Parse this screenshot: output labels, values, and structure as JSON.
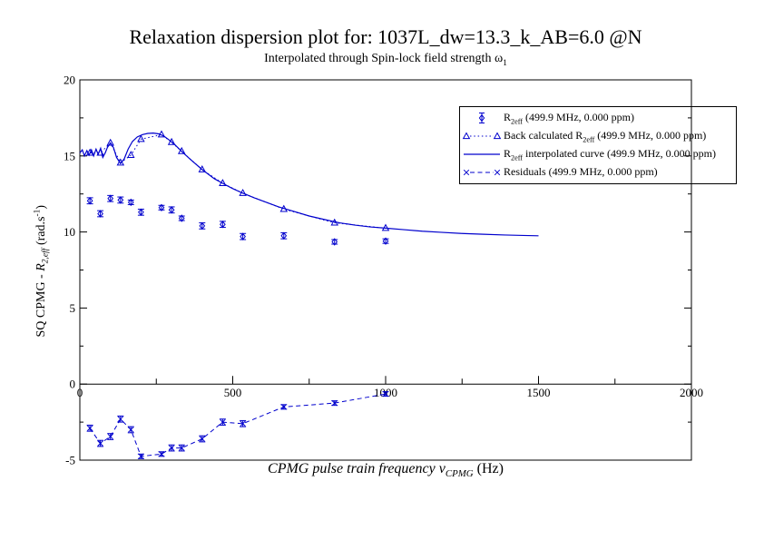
{
  "page": {
    "title": "Relaxation dispersion plot for: 1037L_dw=13.3_k_AB=6.0 @N",
    "subtitle": {
      "pre": "Interpolated through Spin-lock field strength ",
      "symbol": "ω",
      "sub": "1"
    }
  },
  "axes": {
    "x": {
      "label": {
        "p1": "CPMG pulse train frequency ",
        "nu": "ν",
        "sub": "CPMG",
        "p2": " (Hz)"
      },
      "major_ticks": [
        0,
        500,
        1000,
        1500,
        2000
      ],
      "minor_ticks": [
        250,
        750,
        1250,
        1750
      ]
    },
    "y": {
      "label": {
        "p1": "SQ CPMG - ",
        "r": "R",
        "sub": "2,eff",
        "p2": " (rad.s",
        "sup": "-1",
        "p3": ")"
      },
      "major_ticks": [
        20,
        15,
        10,
        5,
        0,
        -5
      ],
      "minor_ticks": [
        17.5,
        12.5,
        7.5,
        2.5,
        -2.5
      ]
    }
  },
  "legend": {
    "entries": [
      {
        "pre": "R",
        "sub": "2eff",
        "post": " (499.9 MHz, 0.000 ppm)"
      },
      {
        "pre": "Back calculated R",
        "sub": "2eff",
        "post": " (499.9 MHz, 0.000 ppm)"
      },
      {
        "pre": "R",
        "sub": "2eff",
        "post": " interpolated curve (499.9 MHz, 0.000 ppm)"
      },
      {
        "pre": "Residuals (499.9 MHz, 0.000 ppm)",
        "sub": "",
        "post": ""
      }
    ]
  },
  "colors": {
    "series": "#0000cd",
    "axis": "#000000"
  },
  "chart_data": {
    "type": "line",
    "title": "Relaxation dispersion plot for: 1037L_dw=13.3_k_AB=6.0 @N",
    "subtitle": "Interpolated through Spin-lock field strength ω_1",
    "xlabel": "CPMG pulse train frequency ν_CPMG (Hz)",
    "ylabel": "SQ CPMG - R_2,eff (rad.s^-1)",
    "xlim": [
      0,
      2000
    ],
    "ylim": [
      -5,
      20
    ],
    "legend_position": "upper right",
    "grid": false,
    "series": [
      {
        "key": "r2eff",
        "name": "R_2eff (499.9 MHz, 0.000 ppm)",
        "style": "diamond-errorbar",
        "z": 3,
        "x": [
          33,
          67,
          100,
          133,
          167,
          200,
          267,
          300,
          333,
          400,
          467,
          533,
          667,
          833,
          1000
        ],
        "y": [
          12.05,
          11.2,
          12.2,
          12.1,
          11.95,
          11.3,
          11.6,
          11.45,
          10.9,
          10.4,
          10.5,
          9.7,
          9.75,
          9.35,
          9.4
        ],
        "err": [
          0.2,
          0.2,
          0.2,
          0.2,
          0.15,
          0.2,
          0.15,
          0.2,
          0.15,
          0.2,
          0.2,
          0.2,
          0.2,
          0.15,
          0.15
        ]
      },
      {
        "key": "back-calculated",
        "name": "Back calculated R_2eff (499.9 MHz, 0.000 ppm)",
        "style": "triangle-dotted",
        "z": 2,
        "x": [
          33,
          67,
          100,
          133,
          167,
          200,
          267,
          300,
          333,
          400,
          467,
          533,
          667,
          833,
          1000
        ],
        "y": [
          15.2,
          15.2,
          15.85,
          14.55,
          15.05,
          16.1,
          16.4,
          15.9,
          15.3,
          14.1,
          13.2,
          12.55,
          11.5,
          10.6,
          10.25
        ]
      },
      {
        "key": "interpolated-curve",
        "name": "R_2eff interpolated curve (499.9 MHz, 0.000 ppm)",
        "style": "solid-line",
        "z": 1,
        "x": [
          0,
          8,
          15,
          23,
          30,
          38,
          45,
          53,
          60,
          68,
          75,
          83,
          90,
          100,
          110,
          120,
          133,
          145,
          158,
          172,
          188,
          205,
          222,
          240,
          258,
          275,
          292,
          310,
          333,
          360,
          400,
          440,
          467,
          500,
          533,
          570,
          610,
          650,
          700,
          750,
          800,
          850,
          900,
          950,
          1000,
          1060,
          1120,
          1180,
          1250,
          1320,
          1390,
          1450,
          1500
        ],
        "y": [
          15.2,
          15.4,
          15.0,
          15.35,
          15.05,
          15.4,
          15.0,
          15.45,
          15.1,
          15.5,
          14.9,
          15.2,
          15.55,
          15.85,
          15.55,
          14.9,
          14.5,
          14.8,
          15.45,
          15.95,
          16.25,
          16.4,
          16.48,
          16.5,
          16.45,
          16.3,
          16.05,
          15.75,
          15.3,
          14.8,
          14.1,
          13.5,
          13.2,
          12.85,
          12.55,
          12.25,
          11.95,
          11.65,
          11.35,
          11.05,
          10.82,
          10.6,
          10.45,
          10.33,
          10.25,
          10.15,
          10.05,
          9.98,
          9.9,
          9.85,
          9.8,
          9.77,
          9.75
        ]
      },
      {
        "key": "residuals",
        "name": "Residuals (499.9 MHz, 0.000 ppm)",
        "style": "x-dashed-errorbar",
        "z": 4,
        "x": [
          33,
          67,
          100,
          133,
          167,
          200,
          267,
          300,
          333,
          400,
          467,
          533,
          667,
          833,
          1000
        ],
        "y": [
          -2.9,
          -3.9,
          -3.45,
          -2.3,
          -3.0,
          -4.75,
          -4.6,
          -4.2,
          -4.2,
          -3.6,
          -2.5,
          -2.6,
          -1.5,
          -1.25,
          -0.65
        ],
        "err": [
          0.2,
          0.2,
          0.2,
          0.2,
          0.2,
          0.15,
          0.15,
          0.2,
          0.2,
          0.2,
          0.2,
          0.2,
          0.15,
          0.15,
          0.15
        ]
      }
    ]
  }
}
